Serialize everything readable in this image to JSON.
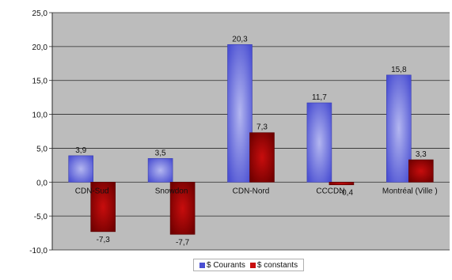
{
  "colors": {
    "plot_background": "#bcbcbc",
    "courants": "#4a4fd2",
    "courants_light": "#b3b6f0",
    "constants": "#c80d0d",
    "constants_dark": "#6e0000",
    "grid": "#2a2a2a"
  },
  "chart_data": {
    "type": "bar",
    "title": "",
    "xlabel": "",
    "ylabel": "",
    "categories": [
      "CDN-Sud",
      "Snowdon",
      "CDN-Nord",
      "CCCDN",
      "Montréal  (Ville )"
    ],
    "series": [
      {
        "name": "$ Courants",
        "values": [
          3.9,
          3.5,
          20.3,
          11.7,
          15.8
        ],
        "labels": [
          "3,9",
          "3,5",
          "20,3",
          "11,7",
          "15,8"
        ]
      },
      {
        "name": "$ constants",
        "values": [
          -7.3,
          -7.7,
          7.3,
          -0.4,
          3.3
        ],
        "labels": [
          "-7,3",
          "-7,7",
          "7,3",
          "-0,4",
          "3,3"
        ]
      }
    ],
    "ylim": [
      -10,
      25
    ],
    "yticks": [
      25,
      20,
      15,
      10,
      5,
      0,
      -5,
      -10
    ],
    "ytick_labels": [
      "25,0",
      "20,0",
      "15,0",
      "10,0",
      "5,0",
      "0,0",
      "-5,0",
      "-10,0"
    ],
    "grid": true,
    "legend": "bottom"
  }
}
